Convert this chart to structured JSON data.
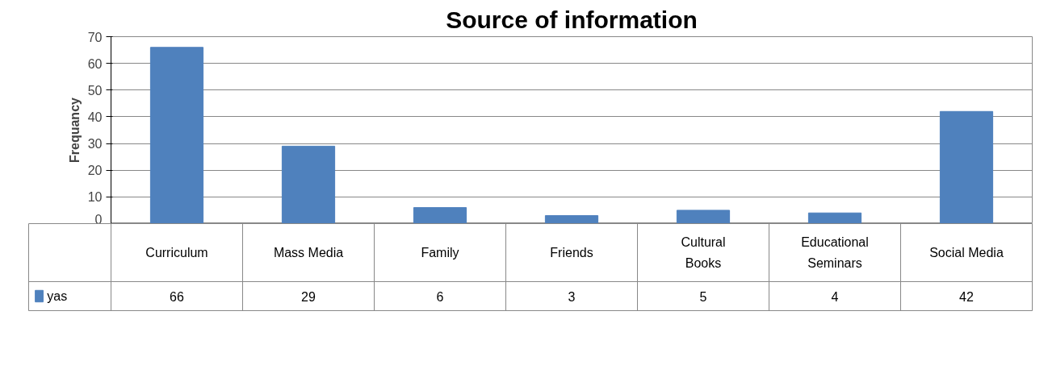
{
  "chart_data": {
    "type": "bar",
    "title": "Source of information",
    "ylabel": "Frequancy",
    "categories": [
      "Curriculum",
      "Mass Media",
      "Family",
      "Friends",
      "Cultural\nBooks",
      "Educational\nSeminars",
      "Social Media"
    ],
    "series": [
      {
        "name": "yas",
        "color": "#4f81bd",
        "values": [
          66,
          29,
          6,
          3,
          5,
          4,
          42
        ]
      }
    ],
    "ylim": [
      0,
      70
    ],
    "yticks": [
      0,
      10,
      20,
      30,
      40,
      50,
      60,
      70
    ],
    "grid": "y",
    "legend": "bottom left",
    "data_labels": true
  }
}
